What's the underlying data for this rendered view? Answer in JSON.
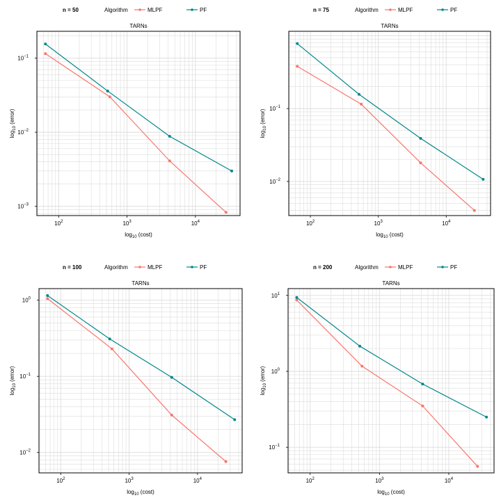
{
  "colors": {
    "MLPF": "#f8766d",
    "PF": "#00878a"
  },
  "chart_data": [
    {
      "type": "line",
      "panel_label": "n = 50",
      "title": "TARNs",
      "legend_title": "Algorithm",
      "legend_position": "top",
      "xlabel_base": "log",
      "xlabel_sub": "10",
      "xlabel_rest": " (cost)",
      "ylabel_base": "log",
      "ylabel_sub": "10",
      "ylabel_rest": " (error)",
      "x_scale": "log",
      "y_scale": "log",
      "xlim": [
        48,
        45000
      ],
      "ylim": [
        0.00075,
        0.23
      ],
      "grid": true,
      "x_ticks": [
        {
          "value": 100,
          "exp": "2"
        },
        {
          "value": 1000,
          "exp": "3"
        },
        {
          "value": 10000,
          "exp": "4"
        }
      ],
      "y_ticks": [
        {
          "value": 0.1,
          "exp": "−1"
        },
        {
          "value": 0.01,
          "exp": "−2"
        },
        {
          "value": 0.001,
          "exp": "−3"
        }
      ],
      "series": [
        {
          "name": "MLPF",
          "x": [
            64,
            560,
            4200,
            28000
          ],
          "y": [
            0.115,
            0.03,
            0.0041,
            0.00083
          ]
        },
        {
          "name": "PF",
          "x": [
            64,
            520,
            4200,
            34000
          ],
          "y": [
            0.155,
            0.036,
            0.0088,
            0.003
          ]
        }
      ]
    },
    {
      "type": "line",
      "panel_label": "n = 75",
      "title": "TARNs",
      "legend_title": "Algorithm",
      "legend_position": "top",
      "xlabel_base": "log",
      "xlabel_sub": "10",
      "xlabel_rest": " (cost)",
      "ylabel_base": "log",
      "ylabel_sub": "10",
      "ylabel_rest": " (error)",
      "x_scale": "log",
      "y_scale": "log",
      "xlim": [
        48,
        45000
      ],
      "ylim": [
        0.0034,
        1.15
      ],
      "grid": true,
      "x_ticks": [
        {
          "value": 100,
          "exp": "2"
        },
        {
          "value": 1000,
          "exp": "3"
        },
        {
          "value": 10000,
          "exp": "4"
        }
      ],
      "y_ticks": [
        {
          "value": 0.1,
          "exp": "−1"
        },
        {
          "value": 0.01,
          "exp": "−2"
        }
      ],
      "series": [
        {
          "name": "MLPF",
          "x": [
            64,
            560,
            4200,
            26000
          ],
          "y": [
            0.38,
            0.115,
            0.018,
            0.004
          ]
        },
        {
          "name": "PF",
          "x": [
            64,
            520,
            4200,
            35000
          ],
          "y": [
            0.78,
            0.157,
            0.039,
            0.0107
          ]
        }
      ]
    },
    {
      "type": "line",
      "panel_label": "n = 100",
      "title": "TARNs",
      "legend_title": "Algorithm",
      "legend_position": "top",
      "xlabel_base": "log",
      "xlabel_sub": "10",
      "xlabel_rest": " (cost)",
      "ylabel_base": "log",
      "ylabel_sub": "10",
      "ylabel_rest": " (error)",
      "x_scale": "log",
      "y_scale": "log",
      "xlim": [
        48,
        45000
      ],
      "ylim": [
        0.0054,
        1.42
      ],
      "grid": true,
      "x_ticks": [
        {
          "value": 100,
          "exp": "2"
        },
        {
          "value": 1000,
          "exp": "3"
        },
        {
          "value": 10000,
          "exp": "4"
        }
      ],
      "y_ticks": [
        {
          "value": 1,
          "exp": "0"
        },
        {
          "value": 0.1,
          "exp": "−1"
        },
        {
          "value": 0.01,
          "exp": "−2"
        }
      ],
      "series": [
        {
          "name": "MLPF",
          "x": [
            64,
            560,
            4200,
            26000
          ],
          "y": [
            1.05,
            0.23,
            0.031,
            0.0076
          ]
        },
        {
          "name": "PF",
          "x": [
            64,
            520,
            4200,
            35000
          ],
          "y": [
            1.15,
            0.31,
            0.097,
            0.027
          ]
        }
      ]
    },
    {
      "type": "line",
      "panel_label": "n = 200",
      "title": "TARNs",
      "legend_title": "Algorithm",
      "legend_position": "top",
      "xlabel_base": "log",
      "xlabel_sub": "10",
      "xlabel_rest": " (cost)",
      "ylabel_base": "log",
      "ylabel_sub": "10",
      "ylabel_rest": " (error)",
      "x_scale": "log",
      "y_scale": "log",
      "xlim": [
        48,
        45000
      ],
      "ylim": [
        0.046,
        12.3
      ],
      "grid": true,
      "x_ticks": [
        {
          "value": 100,
          "exp": "2"
        },
        {
          "value": 1000,
          "exp": "3"
        },
        {
          "value": 10000,
          "exp": "4"
        }
      ],
      "y_ticks": [
        {
          "value": 10,
          "exp": "1"
        },
        {
          "value": 1,
          "exp": "0"
        },
        {
          "value": 0.1,
          "exp": "−1"
        }
      ],
      "series": [
        {
          "name": "MLPF",
          "x": [
            64,
            560,
            4200,
            26000
          ],
          "y": [
            8.7,
            1.17,
            0.35,
            0.056
          ]
        },
        {
          "name": "PF",
          "x": [
            64,
            520,
            4200,
            35000
          ],
          "y": [
            9.4,
            2.15,
            0.68,
            0.25
          ]
        }
      ]
    }
  ]
}
